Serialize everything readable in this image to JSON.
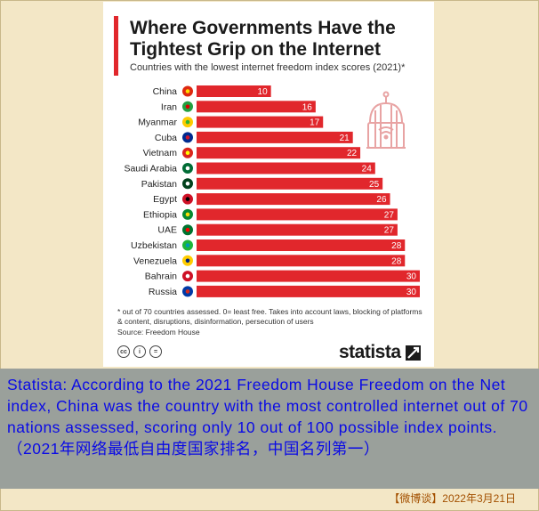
{
  "chart_data": {
    "type": "bar",
    "orientation": "horizontal",
    "title": "Where Governments Have the Tightest Grip on the Internet",
    "subtitle": "Countries with the lowest internet freedom index scores (2021)*",
    "categories": [
      "China",
      "Iran",
      "Myanmar",
      "Cuba",
      "Vietnam",
      "Saudi Arabia",
      "Pakistan",
      "Egypt",
      "Ethiopia",
      "UAE",
      "Uzbekistan",
      "Venezuela",
      "Bahrain",
      "Russia"
    ],
    "values": [
      10,
      16,
      17,
      21,
      22,
      24,
      25,
      26,
      27,
      27,
      28,
      28,
      30,
      30
    ],
    "bar_color": "#e1272c",
    "xlim": [
      0,
      30
    ],
    "data_labels": true,
    "footnote": "* out of 70 countries assessed. 0= least free. Takes into account laws, blocking of platforms & content, disruptions, disinformation, persecution of users",
    "source": "Source: Freedom House"
  },
  "brand": {
    "name": "statista"
  },
  "caption": {
    "text": "Statista: According to the 2021 Freedom House Freedom on the Net index, China was the country with the most controlled internet out of 70 nations assessed, scoring only 10 out of 100 possible index points.（2021年网络最低自由度国家排名，中国名列第一）"
  },
  "date_stamp": "【微博谈】2022年3月21日"
}
